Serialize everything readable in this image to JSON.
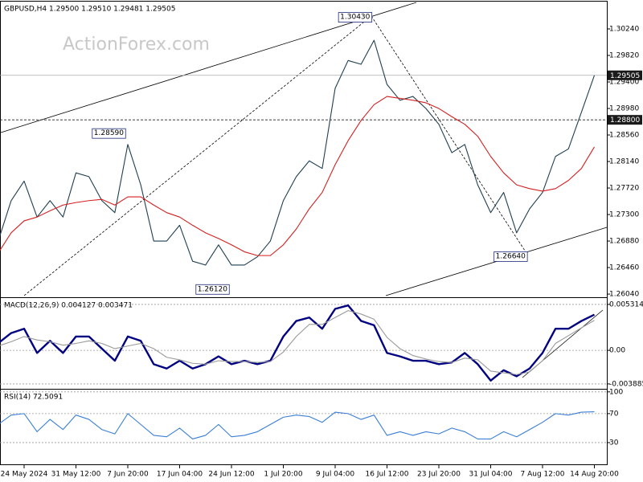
{
  "watermark": "ActionForex.com",
  "chart_data": [
    {
      "type": "line",
      "title": "GBPUSD,H4  1.29500 1.29510 1.29481 1.29505",
      "ylim": [
        1.2599,
        1.3066
      ],
      "yticks": [
        {
          "value": 1.3024,
          "label": "1.30240"
        },
        {
          "value": 1.2982,
          "label": "1.29820"
        },
        {
          "value": 1.294,
          "label": "1.29400"
        },
        {
          "value": 1.2898,
          "label": "1.28980"
        },
        {
          "value": 1.2856,
          "label": "1.28560"
        },
        {
          "value": 1.2814,
          "label": "1.28140"
        },
        {
          "value": 1.2772,
          "label": "1.27720"
        },
        {
          "value": 1.273,
          "label": "1.27300"
        },
        {
          "value": 1.2688,
          "label": "1.26880"
        },
        {
          "value": 1.2646,
          "label": "1.26460"
        },
        {
          "value": 1.2604,
          "label": "1.26040"
        }
      ],
      "grid": false,
      "series": [
        {
          "name": "GBPUSD",
          "color": "#1f3f4f",
          "values": [
            1.2688,
            1.2752,
            1.2783,
            1.2726,
            1.2752,
            1.2726,
            1.2796,
            1.279,
            1.2752,
            1.2733,
            1.2841,
            1.2777,
            1.2688,
            1.2688,
            1.2713,
            1.2656,
            1.265,
            1.2682,
            1.265,
            1.265,
            1.2663,
            1.2688,
            1.2752,
            1.279,
            1.2815,
            1.2803,
            1.293,
            1.2974,
            1.2968,
            1.3006,
            1.2936,
            1.2911,
            1.2917,
            1.2898,
            1.2873,
            1.2828,
            1.2841,
            1.2777,
            1.2733,
            1.2765,
            1.2701,
            1.2739,
            1.2765,
            1.2822,
            1.2834,
            1.2892,
            1.29505
          ]
        },
        {
          "name": "MA",
          "color": "#d42020",
          "values": [
            1.2669,
            1.2701,
            1.272,
            1.2726,
            1.2736,
            1.2745,
            1.2749,
            1.2752,
            1.2754,
            1.2745,
            1.2758,
            1.2758,
            1.2745,
            1.2733,
            1.2726,
            1.2713,
            1.2701,
            1.2692,
            1.2682,
            1.2671,
            1.2665,
            1.2665,
            1.2682,
            1.2707,
            1.2739,
            1.2765,
            1.2809,
            1.2847,
            1.2879,
            1.2904,
            1.2917,
            1.2914,
            1.2911,
            1.2907,
            1.2898,
            1.2885,
            1.2873,
            1.2854,
            1.2822,
            1.2796,
            1.2777,
            1.2771,
            1.2767,
            1.2771,
            1.2784,
            1.2803,
            1.2837
          ]
        }
      ],
      "levels": [
        {
          "value": 1.29505,
          "label": "1.29505",
          "style": "solid"
        },
        {
          "value": 1.288,
          "label": "1.28800",
          "style": "dashed"
        }
      ],
      "annotations": [
        {
          "x": 29,
          "value": 1.3043,
          "label": "1.30430"
        },
        {
          "x": 10,
          "value": 1.2859,
          "label": "1.28590"
        },
        {
          "x": 18,
          "value": 1.2612,
          "label": "1.26120"
        },
        {
          "x": 41,
          "value": 1.2664,
          "label": "1.26640"
        }
      ]
    },
    {
      "type": "line",
      "title": "MACD(12,26,9) 0.004127 0.003471",
      "ylim": [
        -0.00445,
        0.00596
      ],
      "yticks": [
        0.005314,
        {
          "value": 0,
          "label": "0.00"
        },
        -0.003885
      ],
      "grid": true,
      "series": [
        {
          "name": "MACD",
          "color": "#000080",
          "values": [
            0.00082,
            0.002,
            0.0025,
            -0.0003,
            0.0011,
            -0.0003,
            0.0016,
            0.0016,
            0.0002,
            -0.0012,
            0.0016,
            0.0011,
            -0.0016,
            -0.0021,
            -0.0012,
            -0.0021,
            -0.0016,
            -0.0007,
            -0.0016,
            -0.0012,
            -0.0016,
            -0.0012,
            0.0016,
            0.0034,
            0.0038,
            0.0025,
            0.0048,
            0.0052,
            0.0034,
            0.0029,
            -0.0003,
            -0.0007,
            -0.0012,
            -0.0012,
            -0.0016,
            -0.0014,
            -0.0003,
            -0.0016,
            -0.0035,
            -0.0023,
            -0.003,
            -0.0021,
            -0.0003,
            0.0025,
            0.0025,
            0.0034,
            0.004127
          ]
        },
        {
          "name": "Signal",
          "color": "#9a9a9a",
          "values": [
            0.0005,
            0.001,
            0.0016,
            0.0012,
            0.001,
            0.0006,
            0.0008,
            0.0011,
            0.0008,
            0.0002,
            0.0005,
            0.0008,
            0.0002,
            -0.0008,
            -0.0011,
            -0.0015,
            -0.0016,
            -0.0012,
            -0.0013,
            -0.0013,
            -0.0014,
            -0.0013,
            -0.0002,
            0.0016,
            0.003,
            0.003,
            0.0038,
            0.0046,
            0.0042,
            0.0036,
            0.0015,
            0.0002,
            -0.0006,
            -0.001,
            -0.0013,
            -0.0014,
            -0.0009,
            -0.0011,
            -0.0024,
            -0.0026,
            -0.0028,
            -0.0025,
            -0.0012,
            0.0008,
            0.0017,
            0.0026,
            0.003471
          ]
        }
      ]
    },
    {
      "type": "line",
      "title": "RSI(14) 72.5091",
      "ylim": [
        0,
        102
      ],
      "yticks": [
        100,
        70,
        30
      ],
      "grid": true,
      "series": [
        {
          "name": "RSI",
          "color": "#3a7fd5",
          "values": [
            55,
            68,
            70,
            45,
            62,
            48,
            68,
            62,
            48,
            42,
            70,
            55,
            40,
            38,
            50,
            35,
            40,
            55,
            38,
            40,
            45,
            55,
            65,
            68,
            66,
            58,
            72,
            70,
            62,
            68,
            40,
            45,
            40,
            45,
            42,
            50,
            45,
            35,
            35,
            45,
            38,
            48,
            58,
            70,
            68,
            72,
            72.5091
          ]
        }
      ],
      "xticks": [
        {
          "value": 2,
          "label": "24 May 2024"
        },
        {
          "value": 6,
          "label": "31 May 12:00"
        },
        {
          "value": 10,
          "label": "7 Jun 20:00"
        },
        {
          "value": 14,
          "label": "17 Jun 04:00"
        },
        {
          "value": 18,
          "label": "24 Jun 12:00"
        },
        {
          "value": 22,
          "label": "1 Jul 20:00"
        },
        {
          "value": 26,
          "label": "9 Jul 04:00"
        },
        {
          "value": 30,
          "label": "16 Jul 12:00"
        },
        {
          "value": 34,
          "label": "23 Jul 20:00"
        },
        {
          "value": 38,
          "label": "31 Jul 04:00"
        },
        {
          "value": 42,
          "label": "7 Aug 12:00"
        },
        {
          "value": 46,
          "label": "14 Aug 20:00"
        }
      ]
    }
  ]
}
